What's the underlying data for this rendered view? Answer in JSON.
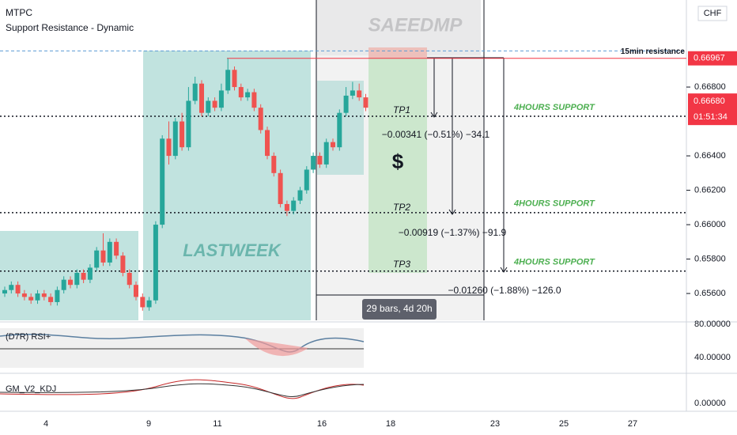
{
  "chart_data": {
    "type": "candlestick",
    "symbol": "MTPC",
    "title": "Support Resistance - Dynamic",
    "watermark": "SAEEDMP",
    "currency": "CHF",
    "box_label": "LASTWEEK",
    "dollar": "$",
    "up_color": "#26a69a",
    "down_color": "#ef5350",
    "open": [
      0.656,
      0.6562,
      0.6565,
      0.656,
      0.6558,
      0.6556,
      0.656,
      0.6558,
      0.6555,
      0.6562,
      0.6568,
      0.6565,
      0.6572,
      0.6568,
      0.6575,
      0.6585,
      0.6578,
      0.659,
      0.6582,
      0.6572,
      0.6565,
      0.6558,
      0.6552,
      0.6556,
      0.66,
      0.665,
      0.664,
      0.666,
      0.6645,
      0.6672,
      0.6682,
      0.6665,
      0.6672,
      0.6668,
      0.6678,
      0.669,
      0.668,
      0.6674,
      0.6677,
      0.6668,
      0.6655,
      0.664,
      0.663,
      0.6612,
      0.6608,
      0.6614,
      0.662,
      0.6632,
      0.664,
      0.6635,
      0.6648,
      0.6645,
      0.6665,
      0.6675,
      0.6678,
      0.6674
    ],
    "high": [
      0.6564,
      0.6567,
      0.6567,
      0.6562,
      0.656,
      0.6562,
      0.6562,
      0.656,
      0.6564,
      0.657,
      0.657,
      0.6574,
      0.6574,
      0.6577,
      0.6587,
      0.6595,
      0.6592,
      0.6592,
      0.6584,
      0.6574,
      0.6567,
      0.656,
      0.6558,
      0.6602,
      0.6652,
      0.666,
      0.6662,
      0.6665,
      0.668,
      0.6686,
      0.6684,
      0.6674,
      0.6674,
      0.6682,
      0.66967,
      0.6692,
      0.6682,
      0.6679,
      0.6679,
      0.667,
      0.6657,
      0.6642,
      0.6632,
      0.6614,
      0.6616,
      0.6622,
      0.6634,
      0.6642,
      0.6642,
      0.665,
      0.665,
      0.6667,
      0.668,
      0.6683,
      0.6682,
      0.6676
    ],
    "low": [
      0.6558,
      0.656,
      0.6558,
      0.6556,
      0.6554,
      0.6554,
      0.6556,
      0.6553,
      0.6553,
      0.656,
      0.6563,
      0.6563,
      0.6566,
      0.6566,
      0.6573,
      0.6576,
      0.6576,
      0.658,
      0.657,
      0.6563,
      0.6556,
      0.655,
      0.655,
      0.6554,
      0.6598,
      0.6635,
      0.6638,
      0.6643,
      0.6643,
      0.667,
      0.6663,
      0.6663,
      0.6666,
      0.6666,
      0.6676,
      0.6678,
      0.6672,
      0.6672,
      0.6666,
      0.6653,
      0.6638,
      0.6628,
      0.661,
      0.6605,
      0.6606,
      0.6612,
      0.6618,
      0.663,
      0.6633,
      0.6633,
      0.6643,
      0.6643,
      0.6663,
      0.6673,
      0.6672,
      0.6666
    ],
    "close": [
      0.6562,
      0.6565,
      0.656,
      0.6558,
      0.6556,
      0.656,
      0.6558,
      0.6555,
      0.6562,
      0.6568,
      0.6565,
      0.6572,
      0.6568,
      0.6575,
      0.6585,
      0.6578,
      0.659,
      0.6582,
      0.6572,
      0.6565,
      0.6558,
      0.6552,
      0.6556,
      0.66,
      0.665,
      0.664,
      0.666,
      0.6645,
      0.6672,
      0.6682,
      0.6665,
      0.6672,
      0.6668,
      0.6678,
      0.669,
      0.668,
      0.6674,
      0.6677,
      0.6668,
      0.6655,
      0.664,
      0.663,
      0.6612,
      0.6608,
      0.6614,
      0.662,
      0.6632,
      0.664,
      0.6635,
      0.6648,
      0.6645,
      0.6665,
      0.6675,
      0.6678,
      0.6674,
      0.6668
    ],
    "ylim": [
      0.65444,
      0.67306
    ],
    "yticks": [
      {
        "value": 0.668,
        "label": "0.66800"
      },
      {
        "value": 0.664,
        "label": "0.66400"
      },
      {
        "value": 0.662,
        "label": "0.66200"
      },
      {
        "value": 0.66,
        "label": "0.66000"
      },
      {
        "value": 0.658,
        "label": "0.65800"
      },
      {
        "value": 0.656,
        "label": "0.65600"
      }
    ],
    "x_labels": [
      "4",
      "9",
      "11",
      "16",
      "18",
      "23",
      "25",
      "27"
    ],
    "levels": [
      {
        "name": "15min resistance",
        "value": 0.6701,
        "color": "#5b9bd5"
      },
      {
        "name": "4HOURS SUPPORT",
        "value": 0.6663,
        "color": "#131722"
      },
      {
        "name": "4HOURS SUPPORT",
        "value": 0.6607,
        "color": "#131722"
      },
      {
        "name": "4HOURS SUPPORT",
        "value": 0.6573,
        "color": "#131722"
      }
    ],
    "resistance": {
      "value": 0.66967,
      "label": "0.66967",
      "color": "#f23645"
    },
    "last_price": {
      "value": 0.6668,
      "label": "0.66680",
      "countdown": "01:51:34",
      "color": "#f23645"
    },
    "targets": [
      {
        "name": "TP1",
        "measure": "−0.00341 (−0.51%) −34.1"
      },
      {
        "name": "TP2",
        "measure": "−0.00919 (−1.37%) −91.9"
      },
      {
        "name": "TP3",
        "measure": "−0.01260 (−1.88%) −126.0"
      }
    ],
    "range_label": "29 bars, 4d 20h",
    "indicators": [
      {
        "name": "(D7R) RSI+",
        "ticks": [
          "80.00000",
          "40.00000"
        ]
      },
      {
        "name": "GM_V2_KDJ",
        "ticks": [
          "0.00000"
        ]
      }
    ]
  }
}
